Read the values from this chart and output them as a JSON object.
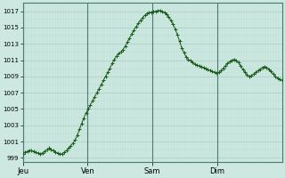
{
  "background_color": "#cce8e0",
  "grid_color_major": "#aaccc4",
  "grid_color_minor": "#bcddd6",
  "line_color": "#1a5c1a",
  "ylim": [
    998.5,
    1018.0
  ],
  "yticks": [
    999,
    1001,
    1003,
    1005,
    1007,
    1009,
    1011,
    1013,
    1015,
    1017
  ],
  "day_labels": [
    "Jeu",
    "Ven",
    "Sam",
    "Dim"
  ],
  "day_positions": [
    0,
    24,
    48,
    72
  ],
  "day_line_color": "#4a7a6a",
  "total_hours": 96,
  "pressure_data": [
    999.5,
    999.7,
    999.8,
    999.9,
    999.9,
    999.8,
    999.7,
    999.6,
    999.5,
    999.6,
    999.8,
    1000.0,
    1000.2,
    1000.0,
    999.9,
    999.7,
    999.6,
    999.5,
    999.5,
    999.7,
    999.9,
    1000.2,
    1000.5,
    1000.8,
    1001.2,
    1001.8,
    1002.5,
    1003.2,
    1003.9,
    1004.5,
    1005.0,
    1005.5,
    1006.0,
    1006.5,
    1007.0,
    1007.5,
    1008.0,
    1008.5,
    1009.0,
    1009.5,
    1010.0,
    1010.6,
    1011.1,
    1011.5,
    1011.8,
    1012.0,
    1012.3,
    1012.7,
    1013.2,
    1013.7,
    1014.2,
    1014.7,
    1015.1,
    1015.5,
    1015.9,
    1016.2,
    1016.5,
    1016.7,
    1016.8,
    1016.9,
    1016.95,
    1017.0,
    1017.05,
    1017.1,
    1017.0,
    1016.85,
    1016.6,
    1016.3,
    1015.9,
    1015.4,
    1014.8,
    1014.1,
    1013.3,
    1012.5,
    1011.9,
    1011.4,
    1011.1,
    1010.9,
    1010.7,
    1010.5,
    1010.4,
    1010.3,
    1010.2,
    1010.1,
    1010.0,
    1009.85,
    1009.7,
    1009.6,
    1009.5,
    1009.4,
    1009.5,
    1009.7,
    1010.0,
    1010.3,
    1010.6,
    1010.8,
    1011.0,
    1011.1,
    1011.0,
    1010.7,
    1010.3,
    1009.9,
    1009.5,
    1009.2,
    1009.0,
    1009.1,
    1009.3,
    1009.5,
    1009.7,
    1009.9,
    1010.1,
    1010.2,
    1010.1,
    1009.9,
    1009.6,
    1009.3,
    1009.0,
    1008.8,
    1008.7,
    1008.5
  ]
}
